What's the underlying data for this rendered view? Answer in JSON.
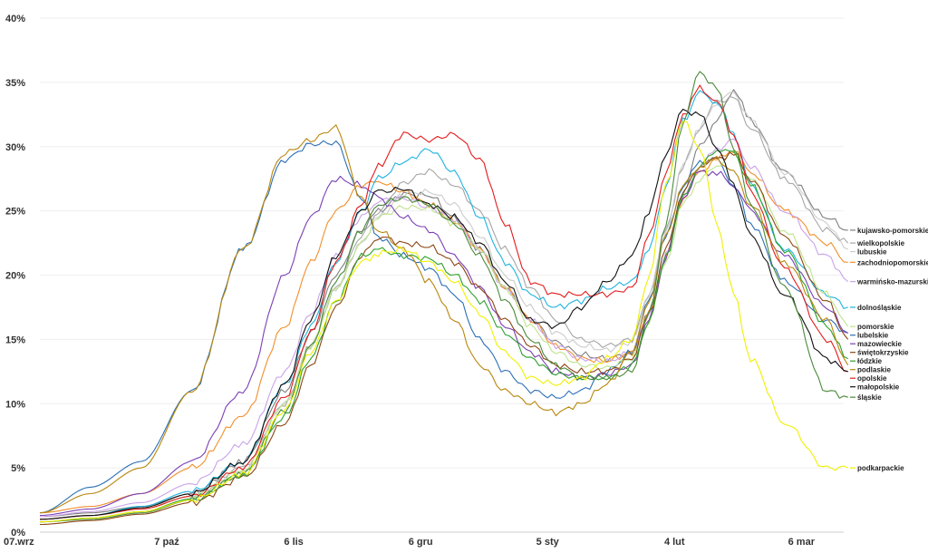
{
  "chart_data": {
    "type": "line",
    "title": "",
    "xlabel": "",
    "ylabel": "",
    "x_tick_labels": [
      {
        "day": 0,
        "label": "07.wrz"
      },
      {
        "day": 30,
        "label": "7 paź"
      },
      {
        "day": 60,
        "label": "6 lis"
      },
      {
        "day": 90,
        "label": "6 gru"
      },
      {
        "day": 120,
        "label": "5 sty"
      },
      {
        "day": 150,
        "label": "4 lut"
      },
      {
        "day": 180,
        "label": "6 mar"
      }
    ],
    "y_tick_labels": [
      "0%",
      "5%",
      "10%",
      "15%",
      "20%",
      "25%",
      "30%",
      "35%",
      "40%"
    ],
    "ylim": [
      0,
      40
    ],
    "xlim": [
      0,
      190
    ],
    "grid": true,
    "legend_placement": "right",
    "series": [
      {
        "name": "kujawsko-pomorskie",
        "color": "#7f7f7f",
        "x": [
          0,
          12,
          24,
          36,
          48,
          58,
          64,
          70,
          76,
          80,
          86,
          92,
          98,
          104,
          110,
          116,
          122,
          128,
          134,
          140,
          144,
          148,
          152,
          156,
          160,
          164,
          168,
          176,
          186,
          191
        ],
        "values": [
          1.2,
          1.5,
          2,
          3,
          5.5,
          11,
          15.5,
          20,
          23.5,
          25,
          26.3,
          26.2,
          24.5,
          22,
          19,
          16.5,
          14.8,
          13.8,
          13.5,
          14,
          17,
          21.5,
          26.5,
          30,
          32,
          34.5,
          32,
          28,
          24.5,
          23.5
        ]
      },
      {
        "name": "wielkopolskie",
        "color": "#a6a6a6",
        "x": [
          0,
          12,
          24,
          36,
          48,
          58,
          64,
          70,
          76,
          80,
          86,
          92,
          98,
          104,
          110,
          116,
          122,
          128,
          134,
          140,
          144,
          148,
          152,
          156,
          160,
          164,
          168,
          176,
          186,
          191
        ],
        "values": [
          1,
          1.3,
          1.8,
          2.8,
          5,
          10,
          14.5,
          19,
          23,
          25,
          27.2,
          28.1,
          27,
          25,
          22,
          19,
          16.5,
          15,
          14.5,
          15,
          18.5,
          23.5,
          28.5,
          31.5,
          33.5,
          33.8,
          31.5,
          27.5,
          23.5,
          22.5
        ]
      },
      {
        "name": "lubuskie",
        "color": "#cccccc",
        "x": [
          0,
          12,
          24,
          36,
          48,
          58,
          64,
          70,
          76,
          80,
          86,
          92,
          98,
          104,
          110,
          116,
          122,
          128,
          134,
          140,
          144,
          148,
          152,
          156,
          160,
          164,
          168,
          176,
          186,
          191
        ],
        "values": [
          1,
          1.3,
          1.8,
          2.8,
          4.8,
          10,
          14.5,
          19,
          22.5,
          24.5,
          26.3,
          26.5,
          25.5,
          23,
          20,
          17.5,
          15.5,
          14.5,
          14.2,
          14.8,
          18.5,
          23.5,
          28.5,
          31.5,
          33.5,
          34.2,
          32,
          28,
          24,
          22
        ]
      },
      {
        "name": "zachodniopomorskie",
        "color": "#f28e2b",
        "x": [
          0,
          12,
          24,
          36,
          48,
          58,
          64,
          70,
          76,
          80,
          86,
          92,
          98,
          104,
          110,
          116,
          122,
          128,
          134,
          140,
          144,
          148,
          152,
          156,
          160,
          164,
          168,
          176,
          186,
          191
        ],
        "values": [
          1.5,
          2,
          3,
          5,
          9,
          16,
          21,
          25,
          27,
          27.3,
          26.5,
          25.5,
          24.2,
          22,
          19,
          16.5,
          14.5,
          13.5,
          13.3,
          14,
          17,
          21.5,
          26,
          28,
          29,
          29.8,
          28,
          25,
          22.5,
          21
        ]
      },
      {
        "name": "warmińsko-mazurskie",
        "color": "#c9a3e8",
        "x": [
          0,
          12,
          24,
          36,
          48,
          58,
          64,
          70,
          76,
          80,
          86,
          92,
          98,
          104,
          110,
          116,
          122,
          128,
          134,
          140,
          144,
          148,
          152,
          156,
          160,
          164,
          168,
          176,
          186,
          191
        ],
        "values": [
          1.2,
          1.6,
          2.3,
          3.8,
          6.8,
          12.5,
          17,
          21.5,
          24.5,
          25.8,
          26,
          25.3,
          24.3,
          22,
          19,
          16.5,
          14.5,
          13.5,
          13.3,
          14,
          17,
          21.5,
          26,
          28.5,
          29.8,
          30.5,
          28.5,
          25,
          21.5,
          19.5
        ]
      },
      {
        "name": "dolnośląskie",
        "color": "#1fb3e0",
        "x": [
          0,
          12,
          24,
          36,
          48,
          58,
          64,
          70,
          76,
          80,
          86,
          92,
          98,
          104,
          110,
          116,
          122,
          128,
          134,
          140,
          144,
          148,
          152,
          156,
          160,
          164,
          168,
          176,
          186,
          191
        ],
        "values": [
          1,
          1.3,
          2,
          3.2,
          5.5,
          11.5,
          16,
          21,
          25,
          27.5,
          28.8,
          29.8,
          28,
          24.5,
          21,
          18.5,
          17.5,
          18,
          19,
          19.5,
          22,
          27,
          32,
          34.2,
          33.5,
          31,
          27,
          22,
          18.5,
          17.5
        ]
      },
      {
        "name": "lubelskie",
        "color": "#2b6fb5",
        "x": [
          0,
          12,
          24,
          36,
          48,
          58,
          64,
          70,
          76,
          80,
          86,
          92,
          98,
          104,
          110,
          116,
          122,
          128,
          134,
          140,
          144,
          148,
          152,
          156,
          160,
          164,
          168,
          176,
          186,
          191
        ],
        "values": [
          1.5,
          3.5,
          5.5,
          11,
          22,
          29,
          30.2,
          30.3,
          26,
          23,
          21.5,
          20.5,
          18.5,
          15,
          12.5,
          11,
          10.5,
          11,
          12.5,
          14,
          18,
          23,
          27,
          28.8,
          29,
          27,
          24,
          19.5,
          16.5,
          15.5
        ]
      },
      {
        "name": "pomorskie",
        "color": "#bfe38c",
        "x": [
          0,
          12,
          24,
          36,
          48,
          58,
          64,
          70,
          76,
          80,
          86,
          92,
          98,
          104,
          110,
          116,
          122,
          128,
          134,
          140,
          144,
          148,
          152,
          156,
          160,
          164,
          168,
          176,
          186,
          191
        ],
        "values": [
          1,
          1.3,
          1.8,
          2.8,
          4.8,
          10,
          14.5,
          19,
          22.5,
          24.5,
          25.3,
          25.2,
          24,
          22,
          19,
          16,
          14,
          13,
          12.8,
          13.5,
          16.5,
          21,
          25.5,
          27.5,
          28.5,
          29.5,
          27.5,
          23.5,
          18.5,
          16
        ]
      },
      {
        "name": "mazowieckie",
        "color": "#7b3fb5",
        "x": [
          0,
          12,
          24,
          36,
          48,
          58,
          64,
          70,
          76,
          80,
          86,
          92,
          98,
          104,
          110,
          116,
          122,
          128,
          134,
          140,
          144,
          148,
          152,
          156,
          160,
          164,
          168,
          176,
          186,
          191
        ],
        "values": [
          1.3,
          1.8,
          3,
          5.5,
          11,
          20,
          24.5,
          27.5,
          27,
          26,
          24.5,
          23.5,
          21.5,
          19,
          16,
          14,
          12.5,
          12,
          12.3,
          13,
          16.5,
          21.5,
          26,
          28,
          28,
          27,
          25,
          21.5,
          17.5,
          15.5
        ]
      },
      {
        "name": "świętokrzyskie",
        "color": "#8b4513",
        "x": [
          0,
          12,
          24,
          36,
          48,
          58,
          64,
          70,
          76,
          80,
          86,
          92,
          98,
          104,
          110,
          116,
          122,
          128,
          134,
          140,
          144,
          148,
          152,
          156,
          160,
          164,
          168,
          176,
          186,
          191
        ],
        "values": [
          0.6,
          0.9,
          1.4,
          2.3,
          4.2,
          8.5,
          13,
          17.5,
          21.5,
          23,
          22.5,
          22.2,
          21,
          19,
          16.5,
          14.5,
          13,
          12.5,
          12.5,
          13.5,
          17,
          22,
          26.5,
          28.5,
          29,
          29.5,
          27.5,
          23,
          18,
          15
        ]
      },
      {
        "name": "łódzkie",
        "color": "#2ca02c",
        "x": [
          0,
          12,
          24,
          36,
          48,
          58,
          64,
          70,
          76,
          80,
          86,
          92,
          98,
          104,
          110,
          116,
          122,
          128,
          134,
          140,
          144,
          148,
          152,
          156,
          160,
          164,
          168,
          176,
          186,
          191
        ],
        "values": [
          0.8,
          1.1,
          1.6,
          2.6,
          4.5,
          9,
          13.5,
          18,
          21.5,
          22,
          21.5,
          21.3,
          20,
          18,
          15.5,
          13.5,
          12.3,
          12,
          12,
          13,
          16.5,
          21.5,
          26,
          28.5,
          29.8,
          29.5,
          27,
          22,
          16,
          13.5
        ]
      },
      {
        "name": "opolskie",
        "color": "#e31a1c",
        "x": [
          0,
          12,
          24,
          36,
          48,
          58,
          64,
          70,
          76,
          80,
          86,
          92,
          98,
          104,
          110,
          116,
          122,
          128,
          134,
          140,
          144,
          148,
          152,
          156,
          160,
          164,
          168,
          176,
          186,
          191
        ],
        "values": [
          1,
          1.3,
          1.8,
          2.8,
          5,
          10.5,
          15.5,
          21,
          25.5,
          28.5,
          31,
          30.5,
          31,
          29,
          24,
          19.5,
          18.5,
          18.5,
          18.5,
          19,
          23,
          28,
          32.5,
          34.5,
          33.5,
          31,
          26.5,
          20.5,
          15,
          12.5
        ]
      },
      {
        "name": "podlaskie",
        "color": "#b8860b",
        "x": [
          0,
          12,
          24,
          36,
          48,
          58,
          64,
          70,
          76,
          80,
          86,
          92,
          98,
          104,
          110,
          116,
          122,
          128,
          134,
          140,
          144,
          148,
          152,
          156,
          160,
          164,
          168,
          176,
          186,
          191
        ],
        "values": [
          1.5,
          3,
          5,
          11,
          22,
          29.5,
          30.5,
          31.5,
          26,
          23.5,
          22,
          19.5,
          16.5,
          13,
          11,
          10,
          9.3,
          10,
          11.5,
          14,
          18,
          23,
          27,
          28.5,
          29,
          28,
          25.5,
          21,
          16.5,
          13
        ]
      },
      {
        "name": "małopolskie",
        "color": "#111111",
        "x": [
          0,
          12,
          24,
          36,
          48,
          58,
          64,
          70,
          76,
          80,
          86,
          92,
          98,
          104,
          110,
          116,
          122,
          128,
          134,
          140,
          144,
          148,
          152,
          156,
          160,
          164,
          168,
          176,
          186,
          191
        ],
        "values": [
          1,
          1.3,
          1.9,
          3,
          5.5,
          11.5,
          16.5,
          21.5,
          25,
          26.5,
          26.7,
          25.5,
          24.5,
          22.5,
          19.5,
          16.5,
          16,
          17.5,
          19.5,
          21.5,
          25,
          29.5,
          32.8,
          32.5,
          30,
          27,
          23,
          18.5,
          13.5,
          12.5
        ]
      },
      {
        "name": "śląskie",
        "color": "#4a8a3a",
        "x": [
          0,
          12,
          24,
          36,
          48,
          58,
          64,
          70,
          76,
          80,
          86,
          92,
          98,
          104,
          110,
          116,
          122,
          128,
          134,
          140,
          144,
          148,
          152,
          156,
          160,
          164,
          168,
          176,
          186,
          191
        ],
        "values": [
          0.8,
          1,
          1.5,
          2.5,
          4.5,
          9.5,
          14.5,
          19.5,
          23.5,
          25.5,
          26,
          25.5,
          24,
          21.5,
          18,
          15,
          13,
          12,
          12,
          12.5,
          17,
          24,
          32,
          35.8,
          34.5,
          30,
          25.5,
          19,
          11,
          10.5
        ]
      },
      {
        "name": "podkarpackie",
        "color": "#f0f000",
        "x": [
          0,
          12,
          24,
          36,
          48,
          58,
          64,
          70,
          76,
          80,
          86,
          92,
          98,
          104,
          110,
          116,
          122,
          128,
          134,
          140,
          144,
          148,
          152,
          156,
          160,
          164,
          168,
          176,
          186,
          191
        ],
        "values": [
          0.8,
          1.1,
          1.6,
          2.5,
          4.5,
          9.5,
          14,
          18,
          21,
          21.7,
          22,
          21,
          19.5,
          17,
          14,
          12,
          11.5,
          12,
          13.5,
          15,
          20,
          27,
          32,
          30,
          24,
          18.5,
          13.5,
          8.5,
          5,
          5
        ]
      }
    ]
  }
}
